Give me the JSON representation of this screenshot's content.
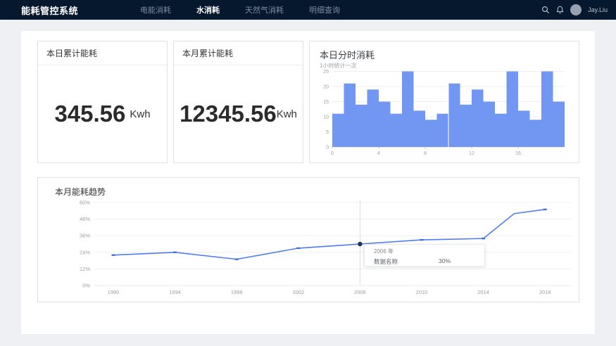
{
  "navbar": {
    "title": "能耗管控系统",
    "items": [
      {
        "label": "电能消耗",
        "active": false
      },
      {
        "label": "水消耗",
        "active": true
      },
      {
        "label": "天然气消耗",
        "active": false
      },
      {
        "label": "明细查询",
        "active": false
      }
    ],
    "user_name": "Jay.Liu"
  },
  "summary_cards": [
    {
      "title": "本日累计能耗",
      "value": "345.56",
      "unit": "Kwh"
    },
    {
      "title": "本月累计能耗",
      "value": "12345.56",
      "unit": "Kwh"
    }
  ],
  "colors": {
    "navbar_bg": "#05182e",
    "bar_fill": "#7197f2",
    "line_stroke": "#4e7df0",
    "marker_fill": "#3f6fe0",
    "selected_point": "#1d3461",
    "gridline": "#f0f0f0",
    "axis_label": "#9e9e9e"
  },
  "chart_data": [
    {
      "type": "bar",
      "title": "本日分时消耗",
      "subtitle": "1小时统计一次",
      "values": [
        11,
        21,
        14,
        19,
        15,
        11,
        25,
        12,
        9,
        11,
        21,
        14,
        19,
        15,
        11,
        25,
        12,
        9,
        25,
        15
      ],
      "x_ticks": [
        "0",
        "4",
        "8",
        "12",
        "16"
      ],
      "y_ticks": [
        "0",
        "5",
        "10",
        "15",
        "20",
        "25"
      ],
      "ylim": [
        0,
        25
      ],
      "grid": true,
      "legend": "none"
    },
    {
      "type": "line",
      "title": "本月能耗趋势",
      "x": [
        1990,
        1994,
        1998,
        2002,
        2006,
        2010,
        2014,
        2016,
        2018
      ],
      "values": [
        22,
        24,
        19,
        27,
        30,
        33,
        34,
        52,
        55
      ],
      "x_ticks": [
        "1990",
        "1994",
        "1998",
        "2002",
        "2006",
        "2010",
        "2014",
        "2018"
      ],
      "y_ticks": [
        "0%",
        "12%",
        "24%",
        "36%",
        "48%",
        "60%"
      ],
      "ylim": [
        0,
        60
      ],
      "grid": true,
      "legend": "none",
      "selected_x": 2006,
      "tooltip": {
        "title": "2006 年",
        "label": "数据名称",
        "value": "30%"
      }
    }
  ]
}
